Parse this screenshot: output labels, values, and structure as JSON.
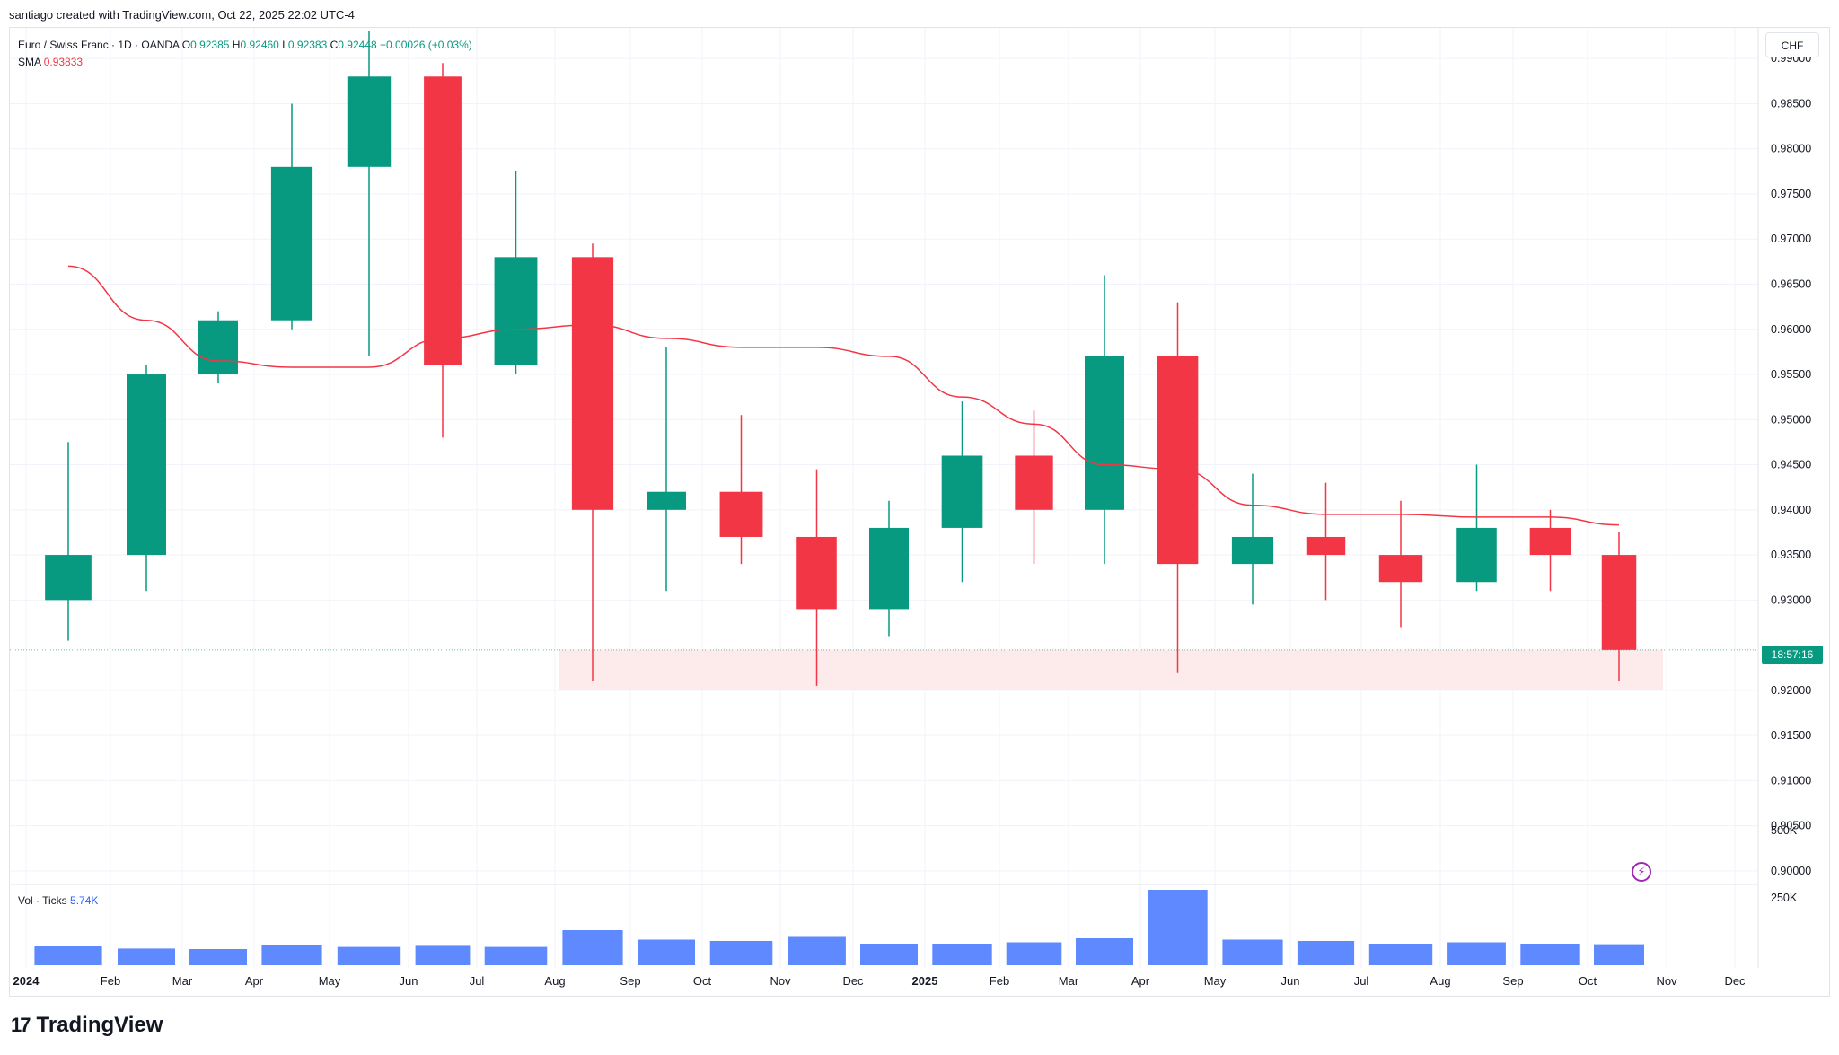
{
  "header": {
    "credit": "santiago created with TradingView.com, Oct 22, 2025 22:02 UTC-4"
  },
  "legend": {
    "symbol": "Euro / Swiss Franc · 1D · OANDA",
    "o_label": "O",
    "o_val": "0.92385",
    "h_label": "H",
    "h_val": "0.92460",
    "l_label": "L",
    "l_val": "0.92383",
    "c_label": "C",
    "c_val": "0.92448",
    "change": "+0.00026 (+0.03%)",
    "sma_label": "SMA",
    "sma_val": "0.93833"
  },
  "volume_legend": {
    "label": "Vol · Ticks",
    "value": "5.74K"
  },
  "currency": "CHF",
  "countdown": "18:57:16",
  "brand": {
    "mark": "17",
    "name": "TradingView"
  },
  "colors": {
    "up": "#089981",
    "down": "#f23645",
    "sma": "#f23645",
    "volume": "#2962ff",
    "zone": "#fdeaea"
  },
  "chart_data": {
    "type": "candlestick",
    "title": "Euro / Swiss Franc · 1D · OANDA",
    "y_axis": {
      "ticks": [
        "0.99000",
        "0.98500",
        "0.98000",
        "0.97500",
        "0.97000",
        "0.96500",
        "0.96000",
        "0.95500",
        "0.95000",
        "0.94500",
        "0.94000",
        "0.93500",
        "0.93000",
        "0.92000",
        "0.91500",
        "0.91000",
        "0.90500",
        "0.90000"
      ],
      "range": [
        0.8985,
        0.9935
      ]
    },
    "x_axis": {
      "ticks": [
        "2024",
        "Feb",
        "Mar",
        "Apr",
        "May",
        "Jun",
        "Jul",
        "Aug",
        "Sep",
        "Oct",
        "Nov",
        "Dec",
        "2025",
        "Feb",
        "Mar",
        "Apr",
        "May",
        "Jun",
        "Jul",
        "Aug",
        "Sep",
        "Oct",
        "Nov",
        "Dec"
      ],
      "bold": [
        "2024",
        "2025"
      ]
    },
    "volume_axis": {
      "ticks": [
        "500K",
        "250K"
      ]
    },
    "last_price": 0.92448,
    "support_zone": {
      "low": 0.92,
      "high": 0.9245,
      "from": "Aug 2024",
      "to": "Oct 2025"
    },
    "monthly": [
      {
        "month": "Jan 2024",
        "open": 0.93,
        "high": 0.9475,
        "low": 0.9255,
        "close": 0.935
      },
      {
        "month": "Feb 2024",
        "open": 0.935,
        "high": 0.956,
        "low": 0.931,
        "close": 0.955
      },
      {
        "month": "Mar 2024",
        "open": 0.955,
        "high": 0.962,
        "low": 0.954,
        "close": 0.961
      },
      {
        "month": "Apr 2024",
        "open": 0.961,
        "high": 0.985,
        "low": 0.96,
        "close": 0.978
      },
      {
        "month": "May 2024",
        "open": 0.978,
        "high": 0.993,
        "low": 0.957,
        "close": 0.988
      },
      {
        "month": "Jun 2024",
        "open": 0.988,
        "high": 0.9895,
        "low": 0.948,
        "close": 0.956
      },
      {
        "month": "Jul 2024",
        "open": 0.956,
        "high": 0.9775,
        "low": 0.955,
        "close": 0.968
      },
      {
        "month": "Aug 2024",
        "open": 0.968,
        "high": 0.9695,
        "low": 0.921,
        "close": 0.94
      },
      {
        "month": "Sep 2024",
        "open": 0.94,
        "high": 0.958,
        "low": 0.931,
        "close": 0.942
      },
      {
        "month": "Oct 2024",
        "open": 0.942,
        "high": 0.9505,
        "low": 0.934,
        "close": 0.937
      },
      {
        "month": "Nov 2024",
        "open": 0.937,
        "high": 0.9445,
        "low": 0.9205,
        "close": 0.929
      },
      {
        "month": "Dec 2024",
        "open": 0.929,
        "high": 0.941,
        "low": 0.926,
        "close": 0.938
      },
      {
        "month": "Jan 2025",
        "open": 0.938,
        "high": 0.952,
        "low": 0.932,
        "close": 0.946
      },
      {
        "month": "Feb 2025",
        "open": 0.946,
        "high": 0.951,
        "low": 0.934,
        "close": 0.94
      },
      {
        "month": "Mar 2025",
        "open": 0.94,
        "high": 0.966,
        "low": 0.934,
        "close": 0.957
      },
      {
        "month": "Apr 2025",
        "open": 0.957,
        "high": 0.963,
        "low": 0.922,
        "close": 0.934
      },
      {
        "month": "May 2025",
        "open": 0.934,
        "high": 0.944,
        "low": 0.9295,
        "close": 0.937
      },
      {
        "month": "Jun 2025",
        "open": 0.937,
        "high": 0.943,
        "low": 0.93,
        "close": 0.935
      },
      {
        "month": "Jul 2025",
        "open": 0.935,
        "high": 0.941,
        "low": 0.927,
        "close": 0.932
      },
      {
        "month": "Aug 2025",
        "open": 0.932,
        "high": 0.945,
        "low": 0.931,
        "close": 0.938
      },
      {
        "month": "Sep 2025",
        "open": 0.938,
        "high": 0.94,
        "low": 0.931,
        "close": 0.935
      },
      {
        "month": "Oct 2025",
        "open": 0.935,
        "high": 0.9375,
        "low": 0.921,
        "close": 0.92448
      }
    ],
    "sma": [
      {
        "month": "Jan 2024",
        "value": 0.967
      },
      {
        "month": "Feb 2024",
        "value": 0.961
      },
      {
        "month": "Mar 2024",
        "value": 0.9565
      },
      {
        "month": "Apr 2024",
        "value": 0.9558
      },
      {
        "month": "May 2024",
        "value": 0.9558
      },
      {
        "month": "Jun 2024",
        "value": 0.959
      },
      {
        "month": "Jul 2024",
        "value": 0.96
      },
      {
        "month": "Aug 2024",
        "value": 0.9605
      },
      {
        "month": "Sep 2024",
        "value": 0.959
      },
      {
        "month": "Oct 2024",
        "value": 0.958
      },
      {
        "month": "Nov 2024",
        "value": 0.958
      },
      {
        "month": "Dec 2024",
        "value": 0.957
      },
      {
        "month": "Jan 2025",
        "value": 0.9525
      },
      {
        "month": "Feb 2025",
        "value": 0.9495
      },
      {
        "month": "Mar 2025",
        "value": 0.945
      },
      {
        "month": "Apr 2025",
        "value": 0.9445
      },
      {
        "month": "May 2025",
        "value": 0.9405
      },
      {
        "month": "Jun 2025",
        "value": 0.9395
      },
      {
        "month": "Jul 2025",
        "value": 0.9395
      },
      {
        "month": "Aug 2025",
        "value": 0.9392
      },
      {
        "month": "Sep 2025",
        "value": 0.9392
      },
      {
        "month": "Oct 2025",
        "value": 0.93833
      }
    ],
    "volume": [
      {
        "month": "Jan 2024",
        "value": 70000
      },
      {
        "month": "Feb 2024",
        "value": 62000
      },
      {
        "month": "Mar 2024",
        "value": 60000
      },
      {
        "month": "Apr 2024",
        "value": 75000
      },
      {
        "month": "May 2024",
        "value": 68000
      },
      {
        "month": "Jun 2024",
        "value": 72000
      },
      {
        "month": "Jul 2024",
        "value": 68000
      },
      {
        "month": "Aug 2024",
        "value": 130000
      },
      {
        "month": "Sep 2024",
        "value": 95000
      },
      {
        "month": "Oct 2024",
        "value": 90000
      },
      {
        "month": "Nov 2024",
        "value": 105000
      },
      {
        "month": "Dec 2024",
        "value": 80000
      },
      {
        "month": "Jan 2025",
        "value": 80000
      },
      {
        "month": "Feb 2025",
        "value": 85000
      },
      {
        "month": "Mar 2025",
        "value": 100000
      },
      {
        "month": "Apr 2025",
        "value": 280000
      },
      {
        "month": "May 2025",
        "value": 95000
      },
      {
        "month": "Jun 2025",
        "value": 90000
      },
      {
        "month": "Jul 2025",
        "value": 80000
      },
      {
        "month": "Aug 2025",
        "value": 85000
      },
      {
        "month": "Sep 2025",
        "value": 80000
      },
      {
        "month": "Oct 2025",
        "value": 78000
      }
    ]
  }
}
